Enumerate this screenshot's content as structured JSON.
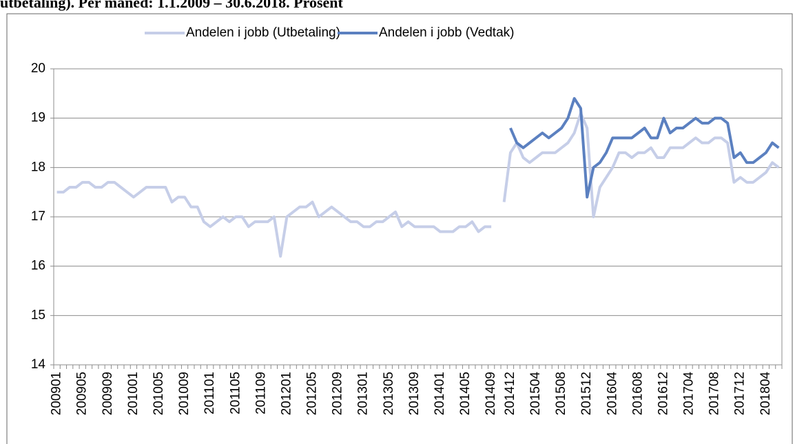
{
  "chart_data": {
    "type": "line",
    "title": "utbetaling). Per måned: 1.1.2009 – 30.6.2018. Prosent",
    "categories": [
      "200901",
      null,
      null,
      null,
      "200905",
      null,
      null,
      null,
      "200909",
      null,
      null,
      null,
      "201001",
      null,
      null,
      null,
      "201005",
      null,
      null,
      null,
      "201009",
      null,
      null,
      null,
      "201101",
      null,
      null,
      null,
      "201105",
      null,
      null,
      null,
      "201109",
      null,
      null,
      null,
      "201201",
      null,
      null,
      null,
      "201205",
      null,
      null,
      null,
      "201209",
      null,
      null,
      null,
      "201301",
      null,
      null,
      null,
      "201305",
      null,
      null,
      null,
      "201309",
      null,
      null,
      null,
      "201401",
      null,
      null,
      null,
      "201405",
      null,
      null,
      null,
      "201409",
      null,
      null,
      "201412",
      null,
      null,
      null,
      "201504",
      null,
      null,
      null,
      "201508",
      null,
      null,
      null,
      "201512",
      null,
      null,
      null,
      "201604",
      null,
      null,
      null,
      "201608",
      null,
      null,
      null,
      "201612",
      null,
      null,
      null,
      "201704",
      null,
      null,
      null,
      "201708",
      null,
      null,
      null,
      "201712",
      null,
      null,
      null,
      "201804",
      null,
      null
    ],
    "series": [
      {
        "name": "Andelen i jobb (Utbetaling)",
        "color": "#c6cee8",
        "values": [
          17.5,
          17.5,
          17.6,
          17.6,
          17.7,
          17.7,
          17.6,
          17.6,
          17.7,
          17.7,
          17.6,
          17.5,
          17.4,
          17.5,
          17.6,
          17.6,
          17.6,
          17.6,
          17.3,
          17.4,
          17.4,
          17.2,
          17.2,
          16.9,
          16.8,
          16.9,
          17.0,
          16.9,
          17.0,
          17.0,
          16.8,
          16.9,
          16.9,
          16.9,
          17.0,
          16.2,
          17.0,
          17.1,
          17.2,
          17.2,
          17.3,
          17.0,
          17.1,
          17.2,
          17.1,
          17.0,
          16.9,
          16.9,
          16.8,
          16.8,
          16.9,
          16.9,
          17.0,
          17.1,
          16.8,
          16.9,
          16.8,
          16.8,
          16.8,
          16.8,
          16.7,
          16.7,
          16.7,
          16.8,
          16.8,
          16.9,
          16.7,
          16.8,
          16.8,
          null,
          17.3,
          18.3,
          18.5,
          18.2,
          18.1,
          18.2,
          18.3,
          18.3,
          18.3,
          18.4,
          18.5,
          18.7,
          19.1,
          18.8,
          17.0,
          17.6,
          17.8,
          18.0,
          18.3,
          18.3,
          18.2,
          18.3,
          18.3,
          18.4,
          18.2,
          18.2,
          18.4,
          18.4,
          18.4,
          18.5,
          18.6,
          18.5,
          18.5,
          18.6,
          18.6,
          18.5,
          17.7,
          17.8,
          17.7,
          17.7,
          17.8,
          17.9,
          18.1,
          18.0
        ]
      },
      {
        "name": "Andelen i jobb (Vedtak)",
        "color": "#5b80c0",
        "values": [
          null,
          null,
          null,
          null,
          null,
          null,
          null,
          null,
          null,
          null,
          null,
          null,
          null,
          null,
          null,
          null,
          null,
          null,
          null,
          null,
          null,
          null,
          null,
          null,
          null,
          null,
          null,
          null,
          null,
          null,
          null,
          null,
          null,
          null,
          null,
          null,
          null,
          null,
          null,
          null,
          null,
          null,
          null,
          null,
          null,
          null,
          null,
          null,
          null,
          null,
          null,
          null,
          null,
          null,
          null,
          null,
          null,
          null,
          null,
          null,
          null,
          null,
          null,
          null,
          null,
          null,
          null,
          null,
          null,
          null,
          null,
          18.8,
          18.5,
          18.4,
          18.5,
          18.6,
          18.7,
          18.6,
          18.7,
          18.8,
          19.0,
          19.4,
          19.2,
          17.4,
          18.0,
          18.1,
          18.3,
          18.6,
          18.6,
          18.6,
          18.6,
          18.7,
          18.8,
          18.6,
          18.6,
          19.0,
          18.7,
          18.8,
          18.8,
          18.9,
          19.0,
          18.9,
          18.9,
          19.0,
          19.0,
          18.9,
          18.2,
          18.3,
          18.1,
          18.1,
          18.2,
          18.3,
          18.5,
          18.4
        ]
      }
    ],
    "ylim": [
      14,
      20
    ],
    "yticks": [
      14,
      15,
      16,
      17,
      18,
      19,
      20
    ],
    "grid": true,
    "legend": "top"
  }
}
